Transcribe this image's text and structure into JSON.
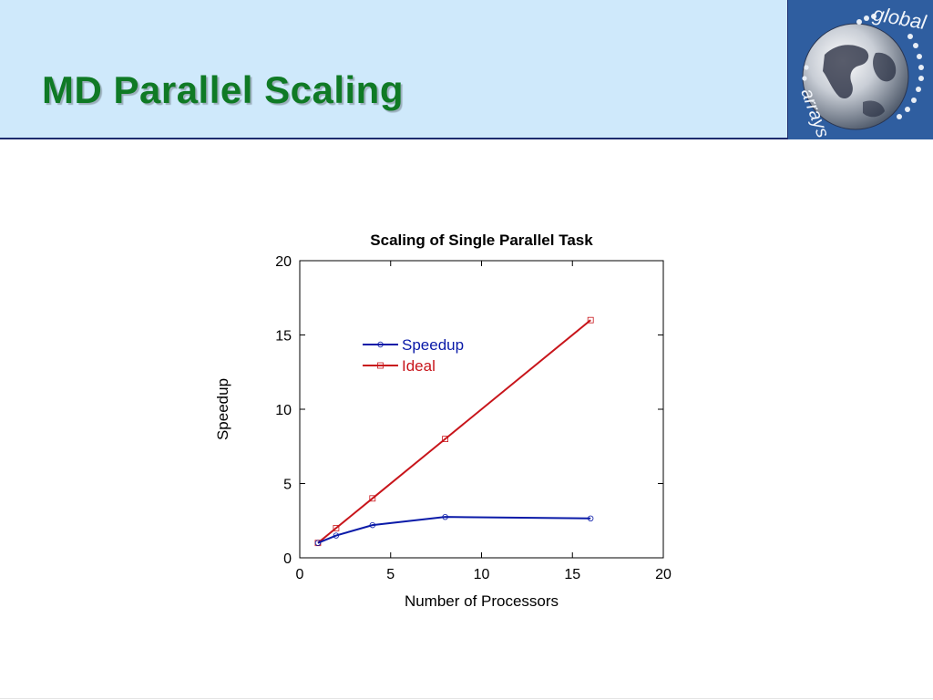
{
  "slide": {
    "title": "MD Parallel Scaling"
  },
  "logo": {
    "text": "global arrays",
    "icon": "globe-icon"
  },
  "colors": {
    "header_bg": "#cfe9fb",
    "title_green": "#0f7a25",
    "speedup": "#0a1aa8",
    "ideal": "#c8151b"
  },
  "chart_data": {
    "type": "line",
    "title": "Scaling of Single Parallel Task",
    "xlabel": "Number of Processors",
    "ylabel": "Speedup",
    "xlim": [
      0,
      20
    ],
    "ylim": [
      0,
      20
    ],
    "xticks": [
      0,
      5,
      10,
      15,
      20
    ],
    "yticks": [
      0,
      5,
      10,
      15,
      20
    ],
    "grid": false,
    "legend_position": "upper-left",
    "series": [
      {
        "name": "Speedup",
        "marker": "circle",
        "color": "#0a1aa8",
        "x": [
          1,
          2,
          4,
          8,
          16
        ],
        "y": [
          1.0,
          1.5,
          2.2,
          2.75,
          2.65
        ]
      },
      {
        "name": "Ideal",
        "marker": "square",
        "color": "#c8151b",
        "x": [
          1,
          2,
          4,
          8,
          16
        ],
        "y": [
          1,
          2,
          4,
          8,
          16
        ]
      }
    ]
  }
}
